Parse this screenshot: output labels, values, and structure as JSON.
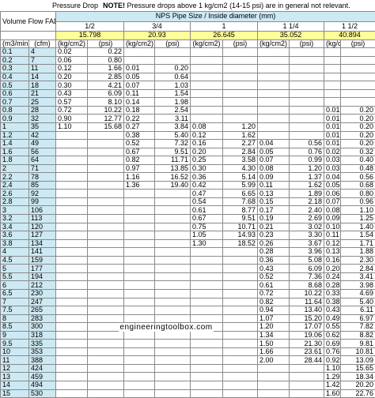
{
  "header": {
    "pressure_drop": "Pressure Drop",
    "note_bold": "NOTE!",
    "note_text": " Pressure drops above 1 kg/cm2 (14-15 psi) are in general not relevant."
  },
  "table": {
    "pipe_size_title": "NPS Pipe Size / Inside diameter (mm)",
    "volume_flow_label": "Volume Flow  FAD",
    "sizes": [
      "1/2",
      "3/4",
      "1",
      "1 1/4",
      "1 1/2"
    ],
    "diameters": [
      "15.798",
      "20.93",
      "26.645",
      "35.052",
      "40.894"
    ],
    "flow_units": [
      "(m3/min)",
      "(cfm)"
    ],
    "pressure_units": [
      "(kg/cm2)",
      "(psi)"
    ],
    "rows": [
      [
        "0.1",
        "4",
        "0.02",
        "0.22",
        "",
        "",
        "",
        "",
        "",
        "",
        "",
        ""
      ],
      [
        "0.2",
        "7",
        "0.06",
        "0.80",
        "",
        "",
        "",
        "",
        "",
        "",
        "",
        ""
      ],
      [
        "0.3",
        "11",
        "0.12",
        "1.66",
        "0.01",
        "0.20",
        "",
        "",
        "",
        "",
        "",
        ""
      ],
      [
        "0.4",
        "14",
        "0.20",
        "2.85",
        "0.05",
        "0.64",
        "",
        "",
        "",
        "",
        "",
        ""
      ],
      [
        "0.5",
        "18",
        "0.30",
        "4.21",
        "0.07",
        "1.03",
        "",
        "",
        "",
        "",
        "",
        ""
      ],
      [
        "0.6",
        "21",
        "0.43",
        "6.09",
        "0.11",
        "1.54",
        "",
        "",
        "",
        "",
        "",
        ""
      ],
      [
        "0.7",
        "25",
        "0.57",
        "8.10",
        "0.14",
        "1.98",
        "",
        "",
        "",
        "",
        "",
        ""
      ],
      [
        "0.8",
        "28",
        "0.72",
        "10.22",
        "0.18",
        "2.54",
        "",
        "",
        "",
        "",
        "0.01",
        "0.20"
      ],
      [
        "0.9",
        "32",
        "0.90",
        "12.77",
        "0.22",
        "3.11",
        "",
        "",
        "",
        "",
        "0.01",
        "0.20"
      ],
      [
        "1",
        "35",
        "1.10",
        "15.68",
        "0.27",
        "3.84",
        "0.08",
        "1.20",
        "",
        "",
        "0.01",
        "0.20"
      ],
      [
        "1.2",
        "42",
        "",
        "",
        "0.38",
        "5.40",
        "0.12",
        "1.62",
        "",
        "",
        "0.01",
        "0.20"
      ],
      [
        "1.4",
        "49",
        "",
        "",
        "0.52",
        "7.32",
        "0.16",
        "2.27",
        "0.04",
        "0.56",
        "0.01",
        "0.20"
      ],
      [
        "1.6",
        "56",
        "",
        "",
        "0.67",
        "9.51",
        "0.20",
        "2.84",
        "0.05",
        "0.76",
        "0.02",
        "0.32"
      ],
      [
        "1.8",
        "64",
        "",
        "",
        "0.82",
        "11.71",
        "0.25",
        "3.58",
        "0.07",
        "0.99",
        "0.03",
        "0.40"
      ],
      [
        "2",
        "71",
        "",
        "",
        "0.97",
        "13.85",
        "0.30",
        "4.30",
        "0.08",
        "1.20",
        "0.03",
        "0.48"
      ],
      [
        "2.2",
        "78",
        "",
        "",
        "1.16",
        "16.52",
        "0.36",
        "5.14",
        "0.09",
        "1.37",
        "0.04",
        "0.56"
      ],
      [
        "2.4",
        "85",
        "",
        "",
        "1.36",
        "19.40",
        "0.42",
        "5.99",
        "0.11",
        "1.62",
        "0.05",
        "0.68"
      ],
      [
        "2.6",
        "92",
        "",
        "",
        "",
        "",
        "0.47",
        "6.65",
        "0.13",
        "1.89",
        "0.06",
        "0.80"
      ],
      [
        "2.8",
        "99",
        "",
        "",
        "",
        "",
        "0.54",
        "7.68",
        "0.15",
        "2.18",
        "0.07",
        "0.96"
      ],
      [
        "3",
        "106",
        "",
        "",
        "",
        "",
        "0.61",
        "8.77",
        "0.17",
        "2.40",
        "0.08",
        "1.10"
      ],
      [
        "3.2",
        "113",
        "",
        "",
        "",
        "",
        "0.67",
        "9.51",
        "0.19",
        "2.69",
        "0.09",
        "1.25"
      ],
      [
        "3.4",
        "120",
        "",
        "",
        "",
        "",
        "0.75",
        "10.71",
        "0.21",
        "3.02",
        "0.10",
        "1.40"
      ],
      [
        "3.6",
        "127",
        "",
        "",
        "",
        "",
        "1.05",
        "14.93",
        "0.23",
        "3.30",
        "0.11",
        "1.54"
      ],
      [
        "3.8",
        "134",
        "",
        "",
        "",
        "",
        "1.30",
        "18.52",
        "0.26",
        "3.67",
        "0.12",
        "1.71"
      ],
      [
        "4",
        "141",
        "",
        "",
        "",
        "",
        "",
        "",
        "0.28",
        "3.96",
        "0.13",
        "1.88"
      ],
      [
        "4.5",
        "159",
        "",
        "",
        "",
        "",
        "",
        "",
        "0.36",
        "5.08",
        "0.16",
        "2.30"
      ],
      [
        "5",
        "177",
        "",
        "",
        "",
        "",
        "",
        "",
        "0.43",
        "6.09",
        "0.20",
        "2.84"
      ],
      [
        "5.5",
        "194",
        "",
        "",
        "",
        "",
        "",
        "",
        "0.52",
        "7.36",
        "0.24",
        "3.41"
      ],
      [
        "6",
        "212",
        "",
        "",
        "",
        "",
        "",
        "",
        "0.61",
        "8.68",
        "0.28",
        "3.98"
      ],
      [
        "6.5",
        "230",
        "",
        "",
        "",
        "",
        "",
        "",
        "0.72",
        "10.22",
        "0.33",
        "4.69"
      ],
      [
        "7",
        "247",
        "",
        "",
        "",
        "",
        "",
        "",
        "0.82",
        "11.64",
        "0.38",
        "5.40"
      ],
      [
        "7.5",
        "265",
        "",
        "",
        "",
        "",
        "",
        "",
        "0.94",
        "13.40",
        "0.43",
        "6.11"
      ],
      [
        "8",
        "283",
        "",
        "",
        "",
        "",
        "",
        "",
        "1.07",
        "15.20",
        "0.49",
        "6.97"
      ],
      [
        "8.5",
        "300",
        "",
        "",
        "",
        "",
        "",
        "",
        "1.20",
        "17.07",
        "0.55",
        "7.82"
      ],
      [
        "9",
        "318",
        "",
        "",
        "",
        "",
        "",
        "",
        "1.34",
        "19.06",
        "0.62",
        "8.82"
      ],
      [
        "9.5",
        "335",
        "",
        "",
        "",
        "",
        "",
        "",
        "1.50",
        "21.30",
        "0.69",
        "9.81"
      ],
      [
        "10",
        "353",
        "",
        "",
        "",
        "",
        "",
        "",
        "1.66",
        "23.61",
        "0.76",
        "10.81"
      ],
      [
        "11",
        "388",
        "",
        "",
        "",
        "",
        "",
        "",
        "2.00",
        "28.44",
        "0.92",
        "13.09"
      ],
      [
        "12",
        "424",
        "",
        "",
        "",
        "",
        "",
        "",
        "",
        "",
        "1.10",
        "15.65"
      ],
      [
        "13",
        "459",
        "",
        "",
        "",
        "",
        "",
        "",
        "",
        "",
        "1.29",
        "18.34"
      ],
      [
        "14",
        "494",
        "",
        "",
        "",
        "",
        "",
        "",
        "",
        "",
        "1.42",
        "20.20"
      ],
      [
        "15",
        "530",
        "",
        "",
        "",
        "",
        "",
        "",
        "",
        "",
        "1.60",
        "22.76"
      ]
    ]
  },
  "watermark": "engineeringtoolbox.com"
}
